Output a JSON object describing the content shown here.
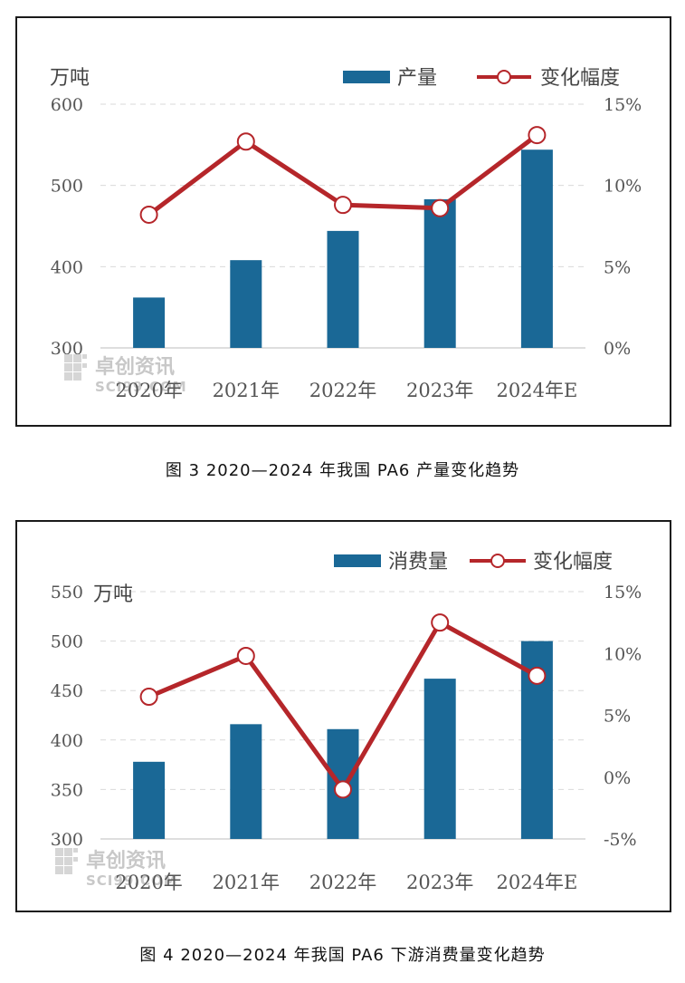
{
  "chart_data": [
    {
      "type": "bar+line",
      "unit_label": "万吨",
      "categories": [
        "2020年",
        "2021年",
        "2022年",
        "2023年",
        "2024年E"
      ],
      "series": [
        {
          "name": "产量",
          "type": "bar",
          "axis": "left",
          "color": "#1a6896",
          "values": [
            362,
            408,
            444,
            483,
            544
          ]
        },
        {
          "name": "变化幅度",
          "type": "line",
          "axis": "right",
          "color": "#b5262a",
          "values": [
            8.2,
            12.7,
            8.8,
            8.6,
            13.1
          ]
        }
      ],
      "ylim": [
        300,
        600
      ],
      "yticks": [
        300,
        400,
        500,
        600
      ],
      "y2lim": [
        0,
        15
      ],
      "y2ticks": [
        "0%",
        "5%",
        "10%",
        "15%"
      ],
      "y2tick_values": [
        0,
        5,
        10,
        15
      ],
      "legend": "top-right",
      "grid": true
    },
    {
      "type": "bar+line",
      "unit_label": "万吨",
      "categories": [
        "2020年",
        "2021年",
        "2022年",
        "2023年",
        "2024年E"
      ],
      "series": [
        {
          "name": "消费量",
          "type": "bar",
          "axis": "left",
          "color": "#1a6896",
          "values": [
            378,
            416,
            411,
            462,
            500
          ]
        },
        {
          "name": "变化幅度",
          "type": "line",
          "axis": "right",
          "color": "#b5262a",
          "values": [
            6.5,
            9.8,
            -1.0,
            12.5,
            8.2
          ]
        }
      ],
      "ylim": [
        300,
        550
      ],
      "yticks": [
        300,
        350,
        400,
        450,
        500,
        550
      ],
      "y2lim": [
        -5,
        15
      ],
      "y2ticks": [
        "-5%",
        "0%",
        "5%",
        "10%",
        "15%"
      ],
      "y2tick_values": [
        -5,
        0,
        5,
        10,
        15
      ],
      "legend": "top-right",
      "grid": true
    }
  ],
  "watermark": {
    "cn": "卓创资讯",
    "en": "SCI99.COM"
  },
  "captions": [
    "图 3  2020—2024 年我国 PA6 产量变化趋势",
    "图 4  2020—2024 年我国 PA6 下游消费量变化趋势"
  ]
}
